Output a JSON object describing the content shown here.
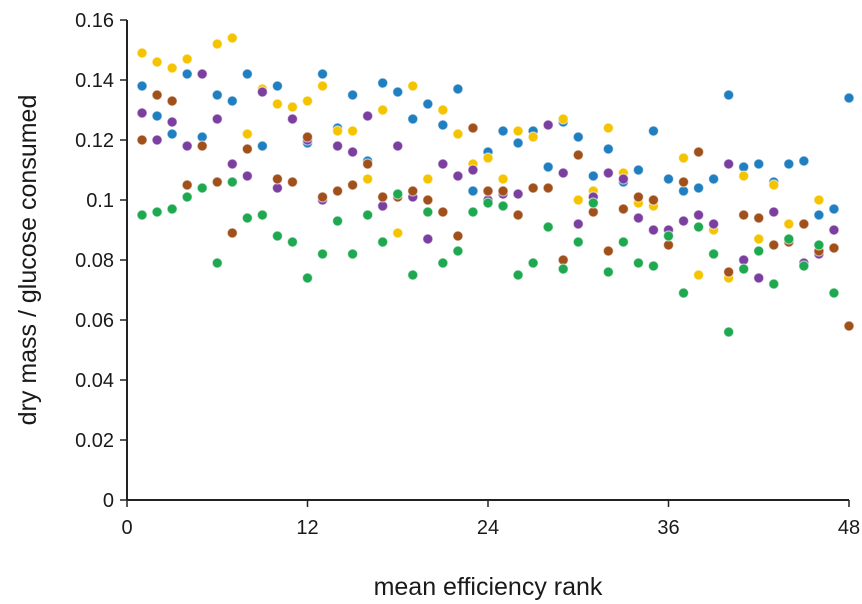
{
  "chart_data": {
    "type": "scatter",
    "xlabel": "mean efficiency rank",
    "ylabel": "dry mass / glucose consumed",
    "xlim": [
      0,
      48
    ],
    "ylim": [
      0,
      0.16
    ],
    "xticks": [
      "0",
      "12",
      "24",
      "36",
      "48"
    ],
    "yticks": [
      "0",
      "0.02",
      "0.04",
      "0.06",
      "0.08",
      "0.1",
      "0.12",
      "0.14",
      "0.16"
    ],
    "grid": false,
    "series": [
      {
        "color": "#1f7fc0",
        "x": [
          1,
          2,
          3,
          4,
          5,
          6,
          7,
          8,
          9,
          10,
          11,
          12,
          13,
          14,
          15,
          16,
          17,
          18,
          19,
          20,
          21,
          22,
          23,
          24,
          25,
          26,
          27,
          28,
          29,
          30,
          31,
          32,
          33,
          34,
          35,
          36,
          37,
          38,
          39,
          40,
          41,
          42,
          43,
          44,
          45,
          46,
          47,
          48
        ],
        "y": [
          0.138,
          0.128,
          0.122,
          0.142,
          0.121,
          0.135,
          0.133,
          0.142,
          0.118,
          0.138,
          0.131,
          0.119,
          0.142,
          0.124,
          0.135,
          0.113,
          0.139,
          0.136,
          0.127,
          0.132,
          0.125,
          0.137,
          0.103,
          0.116,
          0.123,
          0.119,
          0.123,
          0.111,
          0.126,
          0.121,
          0.108,
          0.117,
          0.106,
          0.11,
          0.123,
          0.107,
          0.103,
          0.104,
          0.107,
          0.135,
          0.111,
          0.112,
          0.106,
          0.112,
          0.113,
          0.095,
          0.097,
          0.134
        ]
      },
      {
        "color": "#f5c400",
        "x": [
          1,
          2,
          3,
          4,
          5,
          6,
          7,
          8,
          9,
          10,
          11,
          12,
          13,
          14,
          15,
          16,
          17,
          18,
          19,
          20,
          21,
          22,
          23,
          24,
          25,
          26,
          27,
          28,
          29,
          30,
          31,
          32,
          33,
          34,
          35,
          36,
          37,
          38,
          39,
          40,
          41,
          42,
          43,
          44,
          45,
          46,
          47
        ],
        "y": [
          0.149,
          0.146,
          0.144,
          0.147,
          0.142,
          0.152,
          0.154,
          0.122,
          0.137,
          0.132,
          0.131,
          0.133,
          0.138,
          0.123,
          0.123,
          0.107,
          0.13,
          0.089,
          0.138,
          0.107,
          0.13,
          0.122,
          0.112,
          0.114,
          0.107,
          0.123,
          0.121,
          0.091,
          0.127,
          0.1,
          0.103,
          0.124,
          0.109,
          0.099,
          0.098,
          0.09,
          0.114,
          0.075,
          0.09,
          0.074,
          0.108,
          0.087,
          0.105,
          0.092,
          0.092,
          0.1,
          0.084
        ]
      },
      {
        "color": "#7b3fa0",
        "x": [
          1,
          2,
          3,
          4,
          5,
          6,
          7,
          8,
          9,
          10,
          11,
          12,
          13,
          14,
          15,
          16,
          17,
          18,
          19,
          20,
          21,
          22,
          23,
          24,
          25,
          26,
          27,
          28,
          29,
          30,
          31,
          32,
          33,
          34,
          35,
          36,
          37,
          38,
          39,
          40,
          41,
          42,
          43,
          44,
          45,
          46,
          47
        ],
        "y": [
          0.129,
          0.12,
          0.126,
          0.118,
          0.142,
          0.127,
          0.112,
          0.108,
          0.136,
          0.104,
          0.127,
          0.12,
          0.1,
          0.118,
          0.116,
          0.128,
          0.098,
          0.118,
          0.101,
          0.087,
          0.112,
          0.108,
          0.11,
          0.1,
          0.102,
          0.102,
          0.104,
          0.125,
          0.109,
          0.092,
          0.101,
          0.109,
          0.107,
          0.094,
          0.09,
          0.09,
          0.093,
          0.095,
          0.092,
          0.112,
          0.08,
          0.074,
          0.096,
          0.086,
          0.079,
          0.082,
          0.09
        ]
      },
      {
        "color": "#a0501a",
        "x": [
          1,
          2,
          3,
          4,
          5,
          6,
          7,
          8,
          9,
          10,
          11,
          12,
          13,
          14,
          15,
          16,
          17,
          18,
          19,
          20,
          21,
          22,
          23,
          24,
          25,
          26,
          27,
          28,
          29,
          30,
          31,
          32,
          33,
          34,
          35,
          36,
          37,
          38,
          39,
          40,
          41,
          42,
          43,
          44,
          45,
          46,
          47,
          48
        ],
        "y": [
          0.12,
          0.135,
          0.133,
          0.105,
          0.118,
          0.106,
          0.089,
          0.117,
          0.095,
          0.107,
          0.106,
          0.121,
          0.101,
          0.103,
          0.105,
          0.112,
          0.101,
          0.101,
          0.103,
          0.1,
          0.096,
          0.088,
          0.124,
          0.103,
          0.103,
          0.095,
          0.104,
          0.104,
          0.08,
          0.115,
          0.096,
          0.083,
          0.097,
          0.101,
          0.1,
          0.085,
          0.106,
          0.116,
          0.082,
          0.076,
          0.095,
          0.094,
          0.085,
          0.086,
          0.092,
          0.083,
          0.084,
          0.058
        ]
      },
      {
        "color": "#1ea850",
        "x": [
          1,
          2,
          3,
          4,
          5,
          6,
          7,
          8,
          9,
          10,
          11,
          12,
          13,
          14,
          15,
          16,
          17,
          18,
          19,
          20,
          21,
          22,
          23,
          24,
          25,
          26,
          27,
          28,
          29,
          30,
          31,
          32,
          33,
          34,
          35,
          36,
          37,
          38,
          39,
          40,
          41,
          42,
          43,
          44,
          45,
          46,
          47
        ],
        "y": [
          0.095,
          0.096,
          0.097,
          0.101,
          0.104,
          0.079,
          0.106,
          0.094,
          0.095,
          0.088,
          0.086,
          0.074,
          0.082,
          0.093,
          0.082,
          0.095,
          0.086,
          0.102,
          0.075,
          0.096,
          0.079,
          0.083,
          0.096,
          0.099,
          0.098,
          0.075,
          0.079,
          0.091,
          0.077,
          0.086,
          0.099,
          0.076,
          0.086,
          0.079,
          0.078,
          0.088,
          0.069,
          0.091,
          0.082,
          0.056,
          0.077,
          0.083,
          0.072,
          0.087,
          0.078,
          0.085,
          0.069
        ]
      }
    ]
  }
}
